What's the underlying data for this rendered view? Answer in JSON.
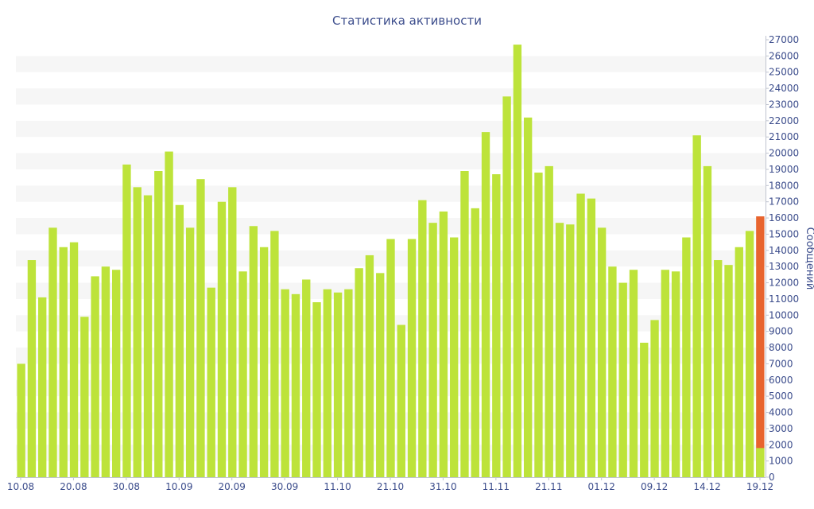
{
  "chart_data": {
    "type": "bar",
    "title": "Статистика активности",
    "ylabel": "Сообщений",
    "xlabel": "",
    "ylim": [
      0,
      27000
    ],
    "y_ticks": [
      0,
      1000,
      2000,
      3000,
      4000,
      5000,
      6000,
      7000,
      8000,
      9000,
      10000,
      11000,
      12000,
      13000,
      14000,
      15000,
      16000,
      17000,
      18000,
      19000,
      20000,
      21000,
      22000,
      23000,
      24000,
      25000,
      26000,
      27000
    ],
    "y_axis_position": "right",
    "grid": "horizontal alternating bands",
    "x_ticks": [
      "10.08",
      "20.08",
      "30.08",
      "10.09",
      "20.09",
      "30.09",
      "11.10",
      "21.10",
      "31.10",
      "11.11",
      "21.11",
      "01.12",
      "09.12",
      "14.12",
      "19.12"
    ],
    "values": [
      7000,
      13400,
      11100,
      15400,
      14200,
      14500,
      9900,
      12400,
      13000,
      12800,
      19300,
      17900,
      17400,
      18900,
      20100,
      16800,
      15400,
      18400,
      11700,
      17000,
      17900,
      12700,
      15500,
      14200,
      15200,
      11600,
      11300,
      12200,
      10800,
      11600,
      11400,
      11600,
      12900,
      13700,
      12600,
      14700,
      9400,
      14700,
      17100,
      15700,
      16400,
      14800,
      18900,
      16600,
      21300,
      18700,
      23500,
      26700,
      22200,
      18800,
      19200,
      15700,
      15600,
      17500,
      17200,
      15400,
      13000,
      12000,
      12800,
      8300,
      9700,
      12800,
      12700,
      14800,
      21100,
      19200,
      13400,
      13100,
      14200,
      15200,
      1800
    ],
    "last_bar_overlay": 16100,
    "colors": {
      "bar": "#bde33a",
      "highlight": "#e8642e",
      "text": "#3c4d8c",
      "band": "#f6f6f6",
      "axis": "#c0c4d0"
    }
  }
}
